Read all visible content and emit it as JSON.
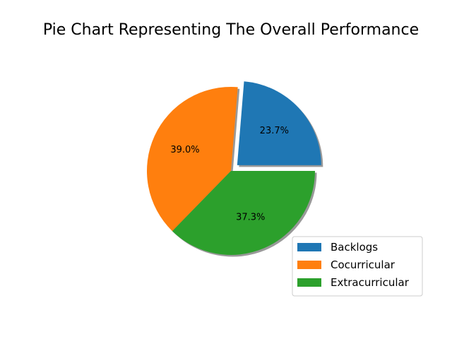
{
  "chart_data": {
    "type": "pie",
    "title": "Pie Chart Representing The Overall Performance",
    "start_angle_deg": 0,
    "counterclock": true,
    "shadow": true,
    "slices": [
      {
        "label": "Backlogs",
        "value": 23.7,
        "pct_label": "23.7%",
        "color": "#1f77b4",
        "exploded": true
      },
      {
        "label": "Cocurricular",
        "value": 39.0,
        "pct_label": "39.0%",
        "color": "#ff7f0e",
        "exploded": false
      },
      {
        "label": "Extracurricular",
        "value": 37.3,
        "pct_label": "37.3%",
        "color": "#2ca02c",
        "exploded": false
      }
    ],
    "legend_placement": "lower-right"
  }
}
